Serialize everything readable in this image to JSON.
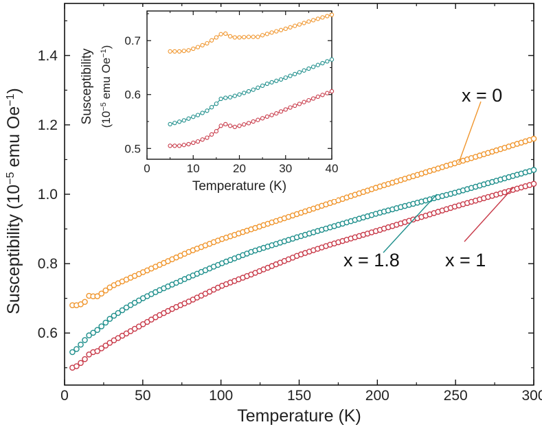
{
  "chart_data": [
    {
      "id": "main",
      "type": "scatter",
      "xlabel": "Temperature (K)",
      "ylabel": "Susceptibility (10^-5 emu Oe^-1)",
      "ylabel_parts": {
        "main": "Susceptibility (10",
        "sup1": "−5",
        "mid": " emu Oe",
        "sup2": "−1",
        "end": ")"
      },
      "xlim": [
        0,
        300
      ],
      "ylim": [
        0.45,
        1.55
      ],
      "xticks": [
        0,
        50,
        100,
        150,
        200,
        250,
        300
      ],
      "xtick_labels": [
        "0",
        "50",
        "100",
        "150",
        "200",
        "250",
        "300"
      ],
      "yticks": [
        0.6,
        0.8,
        1.0,
        1.2,
        1.4
      ],
      "ytick_labels": [
        "0.6",
        "0.8",
        "1.0",
        "1.2",
        "1.4"
      ],
      "series": [
        {
          "name": "x = 0",
          "color": "#f0962e",
          "x": [
            5,
            8,
            12,
            14,
            16,
            17,
            18,
            19,
            21,
            24,
            30,
            40,
            50,
            60,
            70,
            80,
            100,
            120,
            150,
            170,
            200,
            250,
            300
          ],
          "y": [
            0.68,
            0.68,
            0.685,
            0.695,
            0.71,
            0.712,
            0.706,
            0.705,
            0.706,
            0.715,
            0.735,
            0.755,
            0.775,
            0.795,
            0.815,
            0.835,
            0.87,
            0.9,
            0.945,
            0.975,
            1.02,
            1.09,
            1.16
          ]
        },
        {
          "name": "x = 1.8",
          "color": "#1f8f8c",
          "x": [
            5,
            8,
            12,
            16,
            20,
            30,
            40,
            50,
            60,
            70,
            80,
            100,
            120,
            150,
            170,
            200,
            250,
            300
          ],
          "y": [
            0.545,
            0.555,
            0.575,
            0.595,
            0.605,
            0.645,
            0.675,
            0.7,
            0.722,
            0.742,
            0.762,
            0.8,
            0.835,
            0.878,
            0.905,
            0.945,
            1.005,
            1.07
          ]
        },
        {
          "name": "x = 1",
          "color": "#c83a49",
          "x": [
            5,
            8,
            12,
            16,
            17,
            20,
            25,
            30,
            40,
            50,
            60,
            70,
            80,
            100,
            120,
            150,
            170,
            200,
            250,
            300
          ],
          "y": [
            0.5,
            0.505,
            0.52,
            0.54,
            0.545,
            0.545,
            0.56,
            0.575,
            0.6,
            0.625,
            0.65,
            0.672,
            0.692,
            0.735,
            0.77,
            0.825,
            0.855,
            0.895,
            0.965,
            1.03
          ]
        }
      ],
      "annotations": [
        {
          "text": "x = 0",
          "series": 0,
          "point": [
            252,
            1.09
          ]
        },
        {
          "text": "x = 1.8",
          "series": 1,
          "point": [
            238,
            1.0
          ]
        },
        {
          "text": "x = 1",
          "series": 2,
          "point": [
            287,
            1.02
          ]
        }
      ]
    },
    {
      "id": "inset",
      "type": "line",
      "xlabel": "Temperature (K)",
      "ylabel_line1": "Susceptibility",
      "ylabel_parts": {
        "main": "(10",
        "sup1": "−5",
        "mid": " emu Oe",
        "sup2": "−1",
        "end": ")"
      },
      "xlim": [
        0,
        40
      ],
      "ylim": [
        0.48,
        0.755
      ],
      "xticks": [
        0,
        10,
        20,
        30,
        40
      ],
      "xtick_labels": [
        "0",
        "10",
        "20",
        "30",
        "40"
      ],
      "yticks": [
        0.5,
        0.6,
        0.7
      ],
      "ytick_labels": [
        "0.5",
        "0.6",
        "0.7"
      ],
      "series": [
        {
          "name": "x = 0",
          "color": "#f0962e",
          "x": [
            5,
            7,
            9,
            11,
            13,
            15,
            16,
            17,
            18,
            19,
            20,
            22,
            24,
            25,
            27,
            30,
            33,
            36,
            40
          ],
          "y": [
            0.68,
            0.68,
            0.682,
            0.688,
            0.695,
            0.706,
            0.712,
            0.713,
            0.708,
            0.706,
            0.706,
            0.707,
            0.707,
            0.71,
            0.715,
            0.722,
            0.73,
            0.738,
            0.748
          ]
        },
        {
          "name": "x = 1.8",
          "color": "#1f8f8c",
          "x": [
            5,
            8,
            11,
            13,
            15,
            16,
            17,
            18,
            20,
            23,
            26,
            29,
            32,
            35,
            40
          ],
          "y": [
            0.545,
            0.552,
            0.562,
            0.57,
            0.583,
            0.592,
            0.594,
            0.595,
            0.6,
            0.609,
            0.62,
            0.628,
            0.638,
            0.648,
            0.665
          ]
        },
        {
          "name": "x = 1",
          "color": "#c83a49",
          "x": [
            5,
            7,
            9,
            11,
            13,
            15,
            16,
            17,
            18,
            19,
            20,
            22,
            25,
            28,
            31,
            34,
            37,
            40
          ],
          "y": [
            0.505,
            0.505,
            0.508,
            0.513,
            0.52,
            0.532,
            0.542,
            0.545,
            0.542,
            0.54,
            0.542,
            0.547,
            0.556,
            0.565,
            0.576,
            0.586,
            0.596,
            0.606
          ]
        }
      ]
    }
  ]
}
